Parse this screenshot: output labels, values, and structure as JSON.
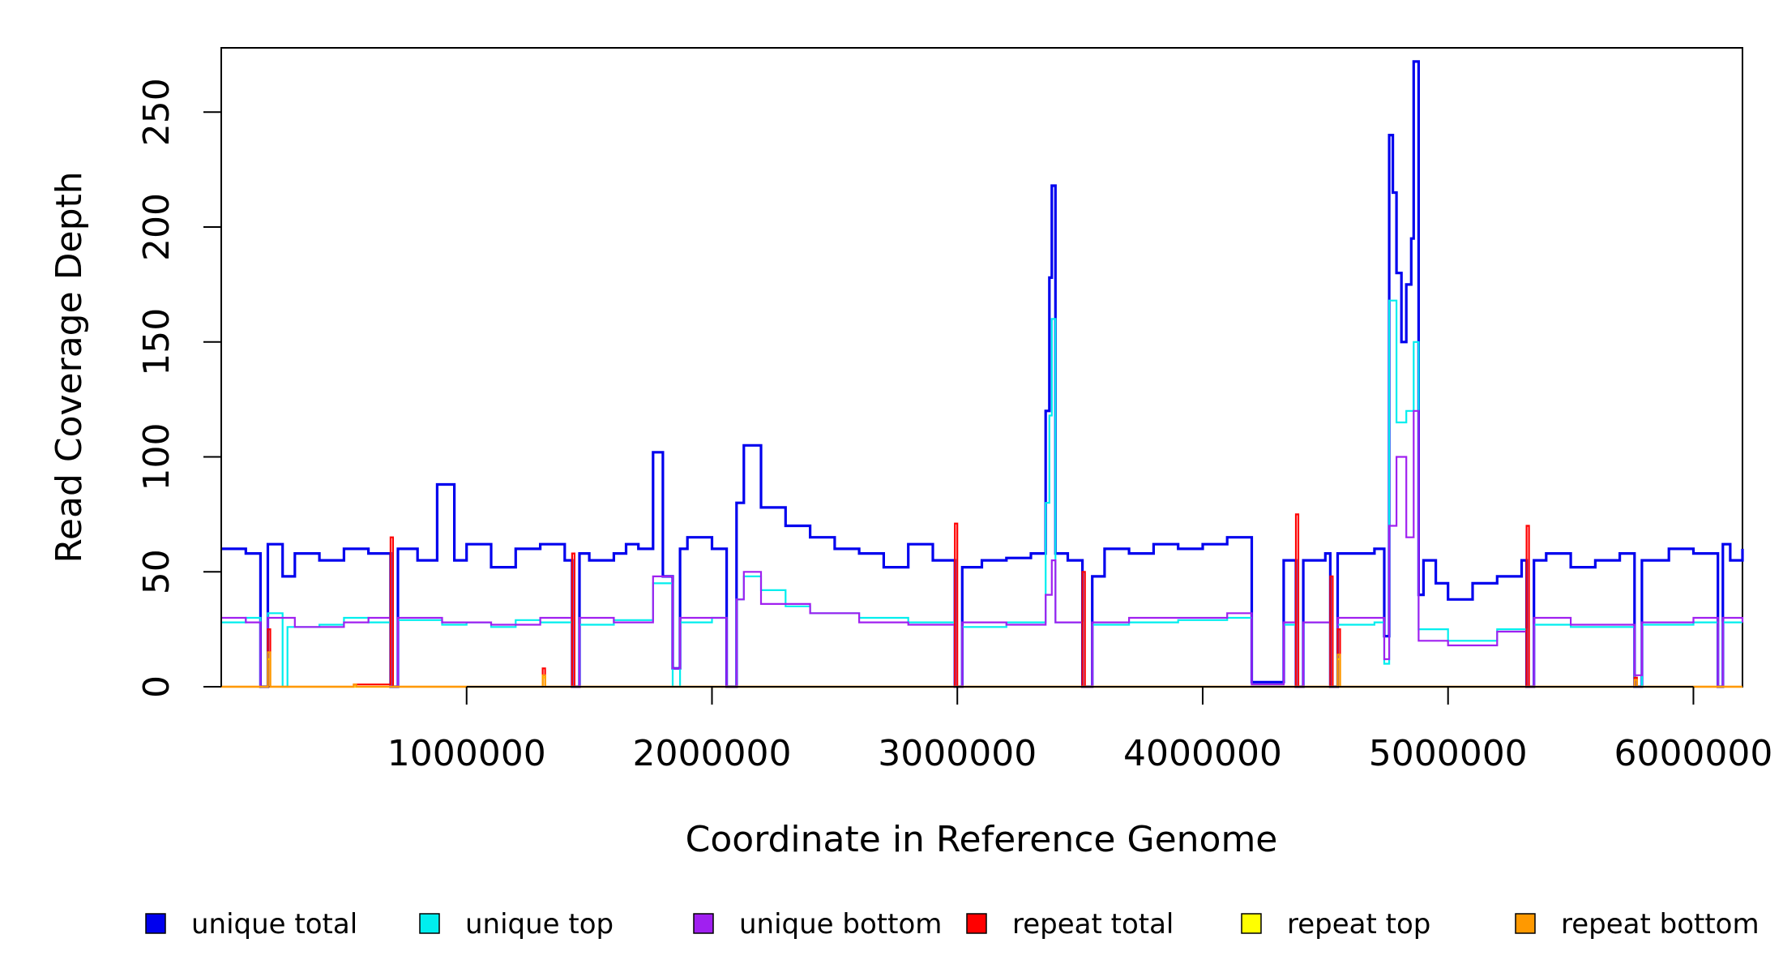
{
  "chart_data": {
    "type": "line",
    "xlabel": "Coordinate in Reference Genome",
    "ylabel": "Read Coverage Depth",
    "xlim": [
      0,
      6200000
    ],
    "ylim": [
      0,
      270
    ],
    "x_ticks": [
      1000000,
      2000000,
      3000000,
      4000000,
      5000000,
      6000000
    ],
    "x_tick_labels": [
      "1000000",
      "2000000",
      "3000000",
      "4000000",
      "5000000",
      "6000000"
    ],
    "y_ticks": [
      0,
      50,
      100,
      150,
      200,
      250
    ],
    "y_tick_labels": [
      "0",
      "50",
      "100",
      "150",
      "200",
      "250"
    ],
    "grid": false,
    "legend_position": "bottom",
    "colors": {
      "unique_total": "#0000ee",
      "unique_top": "#00eeee",
      "unique_bottom": "#a020f0",
      "repeat_total": "#ff0000",
      "repeat_top": "#ffff00",
      "repeat_bottom": "#ff9900"
    },
    "legend": [
      {
        "label": "unique total",
        "color": "#0000ee"
      },
      {
        "label": "unique top",
        "color": "#00eeee"
      },
      {
        "label": "unique bottom",
        "color": "#a020f0"
      },
      {
        "label": "repeat total",
        "color": "#ff0000"
      },
      {
        "label": "repeat top",
        "color": "#ffff00"
      },
      {
        "label": "repeat bottom",
        "color": "#ff9900"
      }
    ],
    "series": [
      {
        "name": "unique total",
        "key": "unique_total",
        "color": "#0000ee",
        "points": [
          [
            0,
            60
          ],
          [
            100000,
            58
          ],
          [
            160000,
            0
          ],
          [
            190000,
            62
          ],
          [
            250000,
            48
          ],
          [
            300000,
            58
          ],
          [
            400000,
            55
          ],
          [
            500000,
            60
          ],
          [
            600000,
            58
          ],
          [
            690000,
            0
          ],
          [
            720000,
            60
          ],
          [
            800000,
            55
          ],
          [
            880000,
            88
          ],
          [
            950000,
            55
          ],
          [
            1000000,
            62
          ],
          [
            1100000,
            52
          ],
          [
            1200000,
            60
          ],
          [
            1300000,
            62
          ],
          [
            1400000,
            55
          ],
          [
            1430000,
            0
          ],
          [
            1460000,
            58
          ],
          [
            1500000,
            55
          ],
          [
            1600000,
            58
          ],
          [
            1650000,
            62
          ],
          [
            1700000,
            60
          ],
          [
            1760000,
            102
          ],
          [
            1800000,
            48
          ],
          [
            1840000,
            8
          ],
          [
            1870000,
            60
          ],
          [
            1900000,
            65
          ],
          [
            2000000,
            60
          ],
          [
            2060000,
            0
          ],
          [
            2100000,
            80
          ],
          [
            2130000,
            105
          ],
          [
            2200000,
            78
          ],
          [
            2300000,
            70
          ],
          [
            2400000,
            65
          ],
          [
            2500000,
            60
          ],
          [
            2600000,
            58
          ],
          [
            2700000,
            52
          ],
          [
            2800000,
            62
          ],
          [
            2900000,
            55
          ],
          [
            2990000,
            0
          ],
          [
            3020000,
            52
          ],
          [
            3100000,
            55
          ],
          [
            3200000,
            56
          ],
          [
            3300000,
            58
          ],
          [
            3360000,
            120
          ],
          [
            3375000,
            178
          ],
          [
            3385000,
            218
          ],
          [
            3400000,
            58
          ],
          [
            3450000,
            55
          ],
          [
            3510000,
            0
          ],
          [
            3550000,
            48
          ],
          [
            3600000,
            60
          ],
          [
            3700000,
            58
          ],
          [
            3800000,
            62
          ],
          [
            3900000,
            60
          ],
          [
            4000000,
            62
          ],
          [
            4100000,
            65
          ],
          [
            4200000,
            2
          ],
          [
            4250000,
            2
          ],
          [
            4300000,
            2
          ],
          [
            4330000,
            55
          ],
          [
            4380000,
            0
          ],
          [
            4410000,
            55
          ],
          [
            4500000,
            58
          ],
          [
            4520000,
            0
          ],
          [
            4550000,
            58
          ],
          [
            4600000,
            58
          ],
          [
            4700000,
            60
          ],
          [
            4740000,
            22
          ],
          [
            4760000,
            240
          ],
          [
            4775000,
            215
          ],
          [
            4790000,
            180
          ],
          [
            4810000,
            150
          ],
          [
            4830000,
            175
          ],
          [
            4850000,
            195
          ],
          [
            4860000,
            272
          ],
          [
            4880000,
            40
          ],
          [
            4900000,
            55
          ],
          [
            4950000,
            45
          ],
          [
            5000000,
            38
          ],
          [
            5100000,
            45
          ],
          [
            5200000,
            48
          ],
          [
            5300000,
            55
          ],
          [
            5320000,
            0
          ],
          [
            5350000,
            55
          ],
          [
            5400000,
            58
          ],
          [
            5500000,
            52
          ],
          [
            5600000,
            55
          ],
          [
            5700000,
            58
          ],
          [
            5760000,
            0
          ],
          [
            5790000,
            55
          ],
          [
            5900000,
            60
          ],
          [
            6000000,
            58
          ],
          [
            6100000,
            0
          ],
          [
            6120000,
            62
          ],
          [
            6150000,
            55
          ],
          [
            6200000,
            60
          ]
        ]
      },
      {
        "name": "unique top",
        "key": "unique_top",
        "color": "#00eeee",
        "points": [
          [
            0,
            28
          ],
          [
            100000,
            30
          ],
          [
            160000,
            0
          ],
          [
            190000,
            32
          ],
          [
            250000,
            0
          ],
          [
            270000,
            26
          ],
          [
            400000,
            27
          ],
          [
            500000,
            30
          ],
          [
            600000,
            28
          ],
          [
            690000,
            0
          ],
          [
            720000,
            29
          ],
          [
            900000,
            27
          ],
          [
            1000000,
            28
          ],
          [
            1100000,
            26
          ],
          [
            1200000,
            29
          ],
          [
            1300000,
            28
          ],
          [
            1430000,
            0
          ],
          [
            1460000,
            27
          ],
          [
            1600000,
            29
          ],
          [
            1760000,
            45
          ],
          [
            1840000,
            0
          ],
          [
            1870000,
            28
          ],
          [
            2000000,
            30
          ],
          [
            2060000,
            0
          ],
          [
            2100000,
            38
          ],
          [
            2130000,
            48
          ],
          [
            2200000,
            42
          ],
          [
            2300000,
            35
          ],
          [
            2400000,
            32
          ],
          [
            2600000,
            30
          ],
          [
            2800000,
            28
          ],
          [
            2990000,
            0
          ],
          [
            3020000,
            26
          ],
          [
            3200000,
            28
          ],
          [
            3360000,
            80
          ],
          [
            3375000,
            118
          ],
          [
            3385000,
            160
          ],
          [
            3400000,
            28
          ],
          [
            3510000,
            0
          ],
          [
            3550000,
            27
          ],
          [
            3700000,
            28
          ],
          [
            3900000,
            29
          ],
          [
            4100000,
            30
          ],
          [
            4200000,
            1
          ],
          [
            4300000,
            1
          ],
          [
            4330000,
            27
          ],
          [
            4380000,
            0
          ],
          [
            4410000,
            28
          ],
          [
            4520000,
            0
          ],
          [
            4550000,
            27
          ],
          [
            4700000,
            28
          ],
          [
            4740000,
            10
          ],
          [
            4760000,
            168
          ],
          [
            4790000,
            115
          ],
          [
            4830000,
            120
          ],
          [
            4860000,
            150
          ],
          [
            4880000,
            25
          ],
          [
            5000000,
            20
          ],
          [
            5200000,
            25
          ],
          [
            5320000,
            0
          ],
          [
            5350000,
            27
          ],
          [
            5500000,
            26
          ],
          [
            5760000,
            0
          ],
          [
            5790000,
            27
          ],
          [
            6000000,
            28
          ],
          [
            6100000,
            0
          ],
          [
            6120000,
            28
          ],
          [
            6200000,
            28
          ]
        ]
      },
      {
        "name": "unique bottom",
        "key": "unique_bottom",
        "color": "#a020f0",
        "points": [
          [
            0,
            30
          ],
          [
            100000,
            28
          ],
          [
            160000,
            0
          ],
          [
            190000,
            30
          ],
          [
            300000,
            26
          ],
          [
            500000,
            28
          ],
          [
            600000,
            30
          ],
          [
            690000,
            0
          ],
          [
            720000,
            30
          ],
          [
            900000,
            28
          ],
          [
            1100000,
            27
          ],
          [
            1300000,
            30
          ],
          [
            1430000,
            0
          ],
          [
            1460000,
            30
          ],
          [
            1600000,
            28
          ],
          [
            1760000,
            48
          ],
          [
            1840000,
            8
          ],
          [
            1870000,
            30
          ],
          [
            2000000,
            30
          ],
          [
            2060000,
            0
          ],
          [
            2100000,
            38
          ],
          [
            2130000,
            50
          ],
          [
            2200000,
            36
          ],
          [
            2400000,
            32
          ],
          [
            2600000,
            28
          ],
          [
            2800000,
            27
          ],
          [
            2990000,
            0
          ],
          [
            3020000,
            28
          ],
          [
            3200000,
            27
          ],
          [
            3360000,
            40
          ],
          [
            3385000,
            55
          ],
          [
            3400000,
            28
          ],
          [
            3510000,
            0
          ],
          [
            3550000,
            28
          ],
          [
            3700000,
            30
          ],
          [
            3900000,
            30
          ],
          [
            4100000,
            32
          ],
          [
            4200000,
            1
          ],
          [
            4300000,
            1
          ],
          [
            4330000,
            28
          ],
          [
            4380000,
            0
          ],
          [
            4410000,
            28
          ],
          [
            4520000,
            0
          ],
          [
            4550000,
            30
          ],
          [
            4700000,
            30
          ],
          [
            4740000,
            12
          ],
          [
            4760000,
            70
          ],
          [
            4790000,
            100
          ],
          [
            4830000,
            65
          ],
          [
            4860000,
            120
          ],
          [
            4880000,
            20
          ],
          [
            5000000,
            18
          ],
          [
            5200000,
            24
          ],
          [
            5320000,
            0
          ],
          [
            5350000,
            30
          ],
          [
            5500000,
            27
          ],
          [
            5760000,
            5
          ],
          [
            5790000,
            28
          ],
          [
            6000000,
            30
          ],
          [
            6100000,
            0
          ],
          [
            6120000,
            30
          ],
          [
            6200000,
            28
          ]
        ]
      },
      {
        "name": "repeat total",
        "key": "repeat_total",
        "color": "#ff0000",
        "points": [
          [
            0,
            0
          ],
          [
            190000,
            25
          ],
          [
            200000,
            0
          ],
          [
            540000,
            1
          ],
          [
            690000,
            65
          ],
          [
            700000,
            0
          ],
          [
            1310000,
            8
          ],
          [
            1320000,
            0
          ],
          [
            1430000,
            58
          ],
          [
            1440000,
            0
          ],
          [
            2990000,
            71
          ],
          [
            3000000,
            0
          ],
          [
            3510000,
            50
          ],
          [
            3520000,
            0
          ],
          [
            4380000,
            75
          ],
          [
            4390000,
            0
          ],
          [
            4520000,
            48
          ],
          [
            4530000,
            0
          ],
          [
            4550000,
            25
          ],
          [
            4560000,
            0
          ],
          [
            5320000,
            70
          ],
          [
            5330000,
            0
          ],
          [
            5760000,
            4
          ],
          [
            5770000,
            0
          ],
          [
            6200000,
            0
          ]
        ]
      },
      {
        "name": "repeat top",
        "key": "repeat_top",
        "color": "#ffff00",
        "points": [
          [
            0,
            0
          ],
          [
            190000,
            12
          ],
          [
            200000,
            0
          ],
          [
            1310000,
            4
          ],
          [
            1320000,
            0
          ],
          [
            4550000,
            12
          ],
          [
            4560000,
            0
          ],
          [
            6200000,
            0
          ]
        ]
      },
      {
        "name": "repeat bottom",
        "key": "repeat_bottom",
        "color": "#ff9900",
        "points": [
          [
            0,
            0
          ],
          [
            190000,
            15
          ],
          [
            200000,
            0
          ],
          [
            540000,
            1
          ],
          [
            550000,
            0
          ],
          [
            1310000,
            5
          ],
          [
            1320000,
            0
          ],
          [
            4550000,
            14
          ],
          [
            4560000,
            0
          ],
          [
            5760000,
            3
          ],
          [
            5770000,
            0
          ],
          [
            6200000,
            0
          ]
        ]
      }
    ]
  }
}
